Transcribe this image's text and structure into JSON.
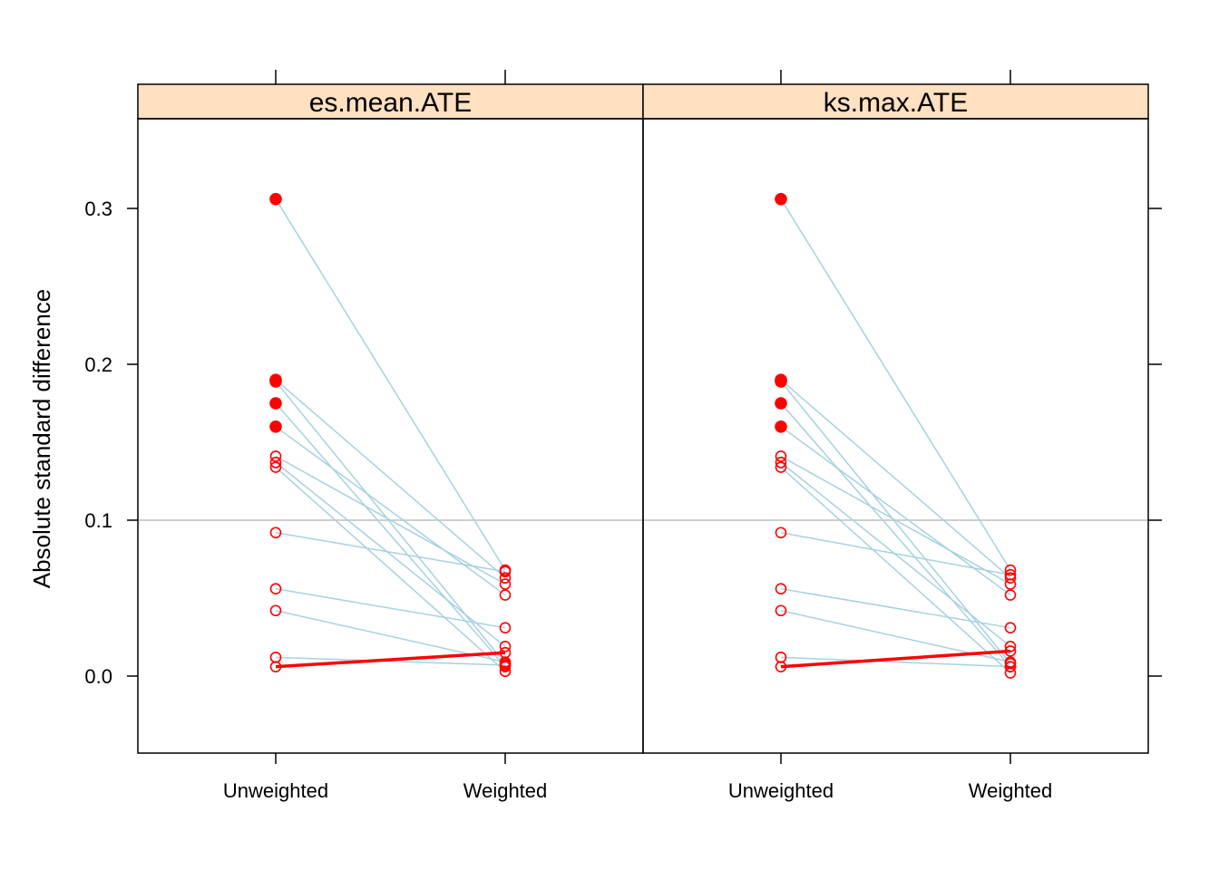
{
  "chart_data": {
    "type": "line",
    "ylabel": "Absolute standard difference",
    "categories": [
      "Unweighted",
      "Weighted"
    ],
    "y_ticks": [
      "0.0",
      "0.1",
      "0.2",
      "0.3"
    ],
    "ylim": [
      -0.05,
      0.355
    ],
    "reference_line": 0.1,
    "colors": {
      "strip_fill": "#ffe0c1",
      "connector": "#a6d2e0",
      "point": "#ff0000",
      "increase_line": "#ff0000",
      "reference_line": "#bfbfbf"
    },
    "panels": [
      {
        "title": "es.mean.ATE",
        "pairs": [
          {
            "unweighted": 0.306,
            "weighted": 0.068,
            "significant": true
          },
          {
            "unweighted": 0.19,
            "weighted": 0.063,
            "significant": true
          },
          {
            "unweighted": 0.189,
            "weighted": 0.008,
            "significant": true
          },
          {
            "unweighted": 0.175,
            "weighted": 0.006,
            "significant": true
          },
          {
            "unweighted": 0.16,
            "weighted": 0.052,
            "significant": true
          },
          {
            "unweighted": 0.141,
            "weighted": 0.059,
            "significant": false
          },
          {
            "unweighted": 0.137,
            "weighted": 0.019,
            "significant": false
          },
          {
            "unweighted": 0.134,
            "weighted": 0.003,
            "significant": false
          },
          {
            "unweighted": 0.092,
            "weighted": 0.067,
            "significant": false
          },
          {
            "unweighted": 0.056,
            "weighted": 0.031,
            "significant": false
          },
          {
            "unweighted": 0.042,
            "weighted": 0.009,
            "significant": false
          },
          {
            "unweighted": 0.012,
            "weighted": 0.007,
            "significant": false
          },
          {
            "unweighted": 0.006,
            "weighted": 0.015,
            "significant": false,
            "increase": true
          }
        ]
      },
      {
        "title": "ks.max.ATE",
        "pairs": [
          {
            "unweighted": 0.306,
            "weighted": 0.068,
            "significant": true
          },
          {
            "unweighted": 0.19,
            "weighted": 0.063,
            "significant": true
          },
          {
            "unweighted": 0.189,
            "weighted": 0.008,
            "significant": true
          },
          {
            "unweighted": 0.175,
            "weighted": 0.006,
            "significant": true
          },
          {
            "unweighted": 0.16,
            "weighted": 0.052,
            "significant": true
          },
          {
            "unweighted": 0.141,
            "weighted": 0.059,
            "significant": false
          },
          {
            "unweighted": 0.137,
            "weighted": 0.019,
            "significant": false
          },
          {
            "unweighted": 0.134,
            "weighted": 0.002,
            "significant": false
          },
          {
            "unweighted": 0.092,
            "weighted": 0.065,
            "significant": false
          },
          {
            "unweighted": 0.056,
            "weighted": 0.031,
            "significant": false
          },
          {
            "unweighted": 0.042,
            "weighted": 0.009,
            "significant": false
          },
          {
            "unweighted": 0.012,
            "weighted": 0.006,
            "significant": false
          },
          {
            "unweighted": 0.006,
            "weighted": 0.016,
            "significant": false,
            "increase": true
          }
        ]
      }
    ]
  }
}
